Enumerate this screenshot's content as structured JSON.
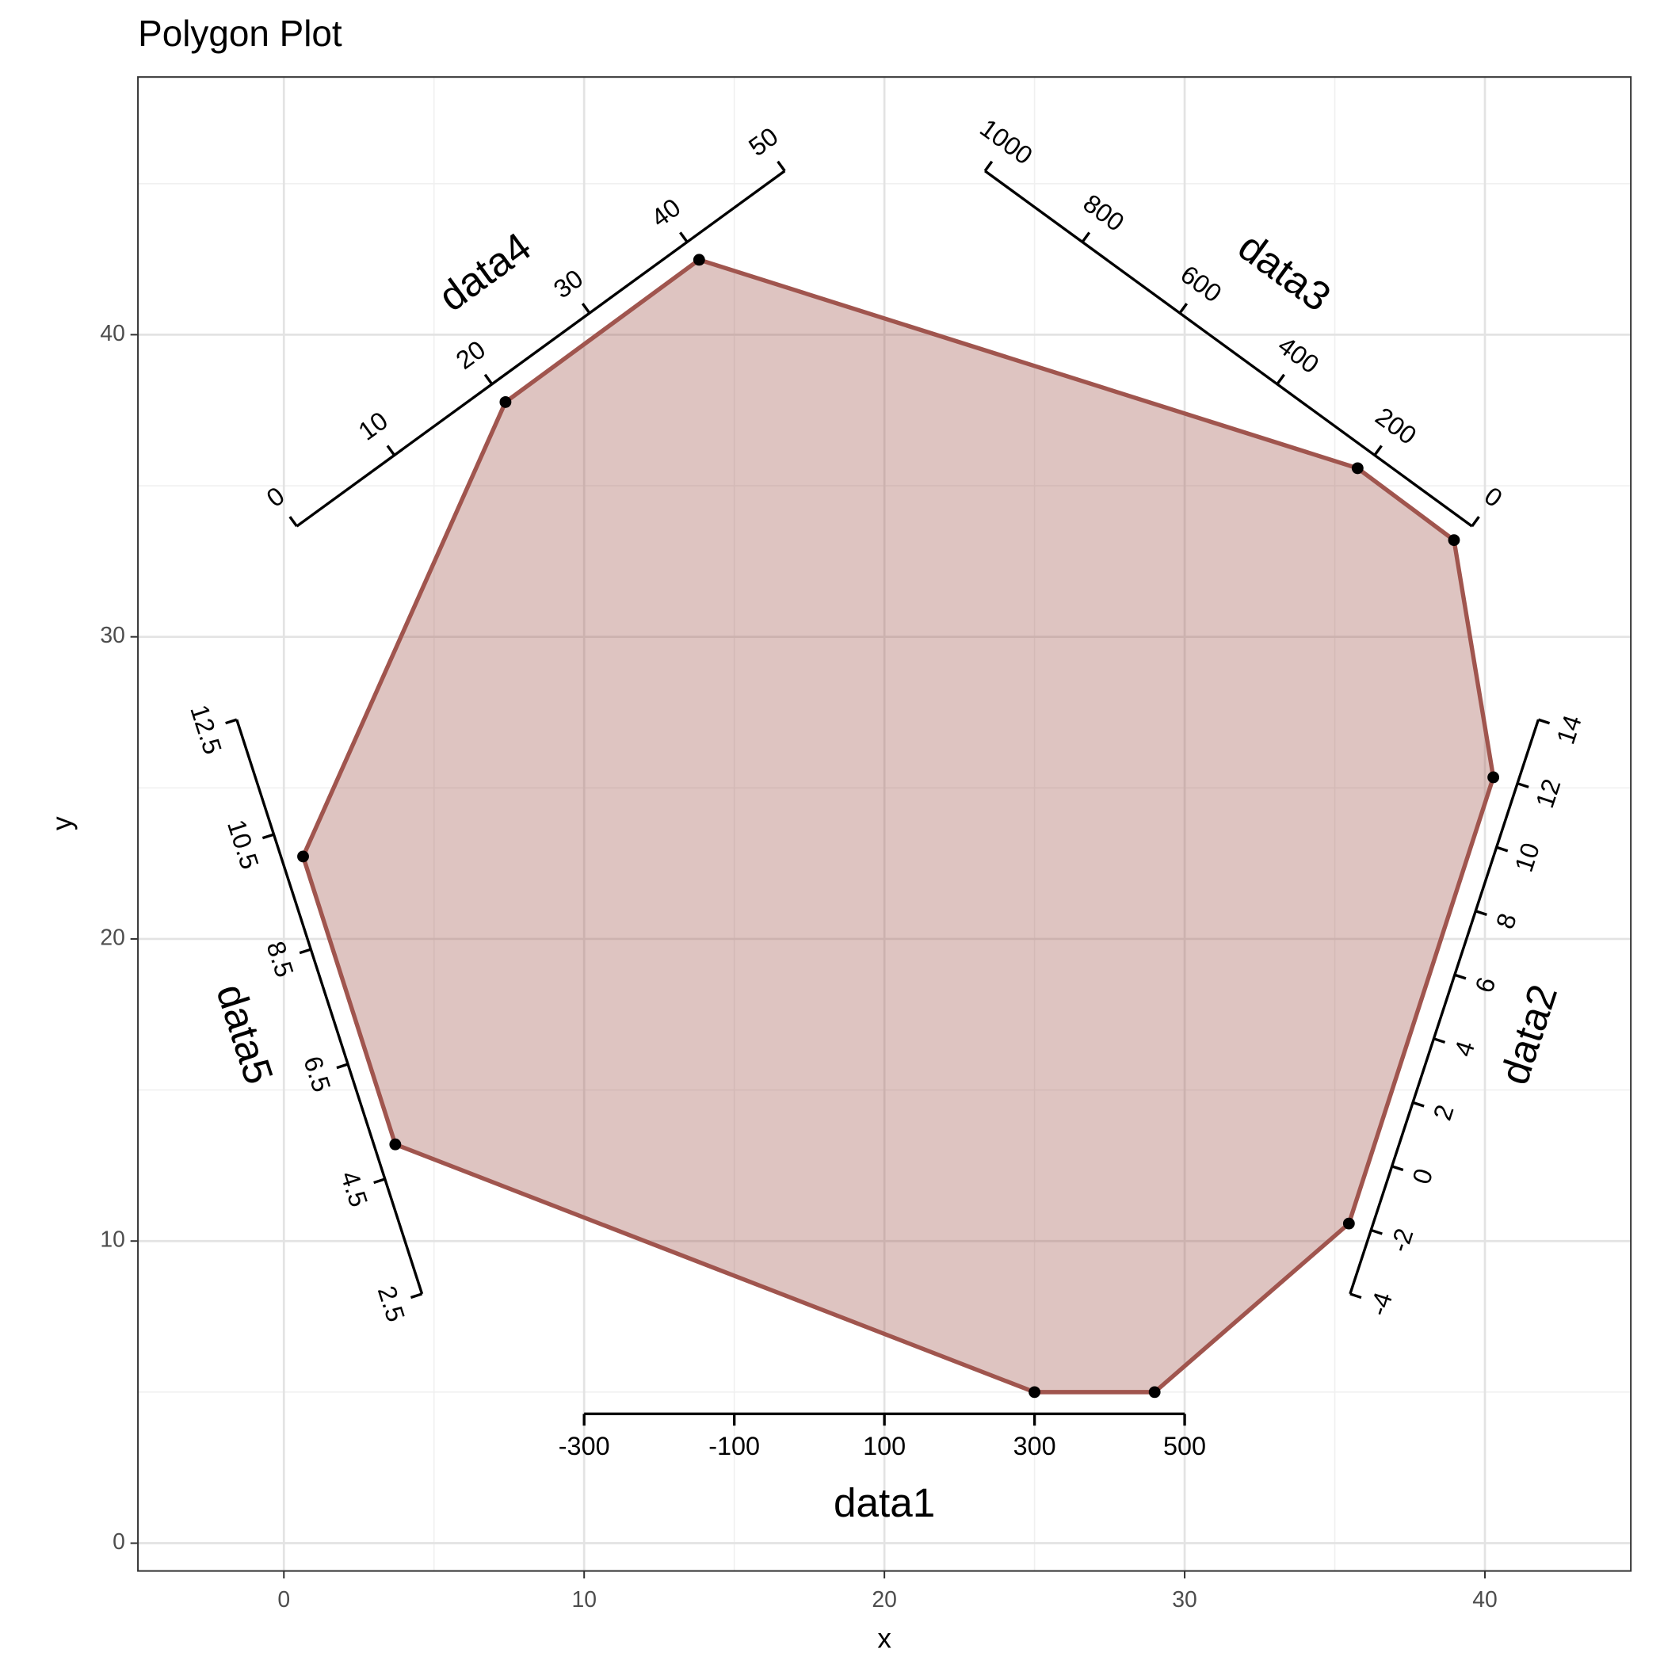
{
  "chart_data": {
    "type": "polygon",
    "title": "Polygon Plot",
    "x_label": "x",
    "y_label": "y",
    "x": [
      25,
      29,
      35.47,
      40.28,
      38.97,
      35.76,
      13.83,
      7.38,
      0.64,
      3.71
    ],
    "y": [
      5,
      5,
      10.58,
      25.35,
      33.2,
      35.58,
      42.48,
      37.77,
      22.73,
      13.2
    ],
    "color": "#a0554e",
    "xlim": [
      -4.86,
      44.86
    ],
    "ylim": [
      -0.92,
      48.53
    ],
    "xticks": [
      0,
      10,
      20,
      30,
      40
    ],
    "yticks": [
      0,
      10,
      20,
      30,
      40
    ],
    "grid": true,
    "axes": [
      {
        "name": "data1",
        "lim": [
          -300,
          500
        ],
        "ticks": [
          -300,
          -100,
          100,
          300,
          500
        ]
      },
      {
        "name": "data2",
        "lim": [
          -4,
          14
        ],
        "ticks": [
          -4,
          -2,
          0,
          2,
          4,
          6,
          8,
          10,
          12,
          14
        ]
      },
      {
        "name": "data3",
        "lim": [
          0,
          1000
        ],
        "ticks": [
          0,
          200,
          400,
          600,
          800,
          1000
        ]
      },
      {
        "name": "data4",
        "lim": [
          0,
          50
        ],
        "ticks": [
          0,
          10,
          20,
          30,
          40,
          50
        ]
      },
      {
        "name": "data5",
        "lim": [
          2.5,
          12.5
        ],
        "ticks": [
          2.5,
          4.5,
          6.5,
          8.5,
          10.5,
          12.5
        ]
      }
    ]
  }
}
